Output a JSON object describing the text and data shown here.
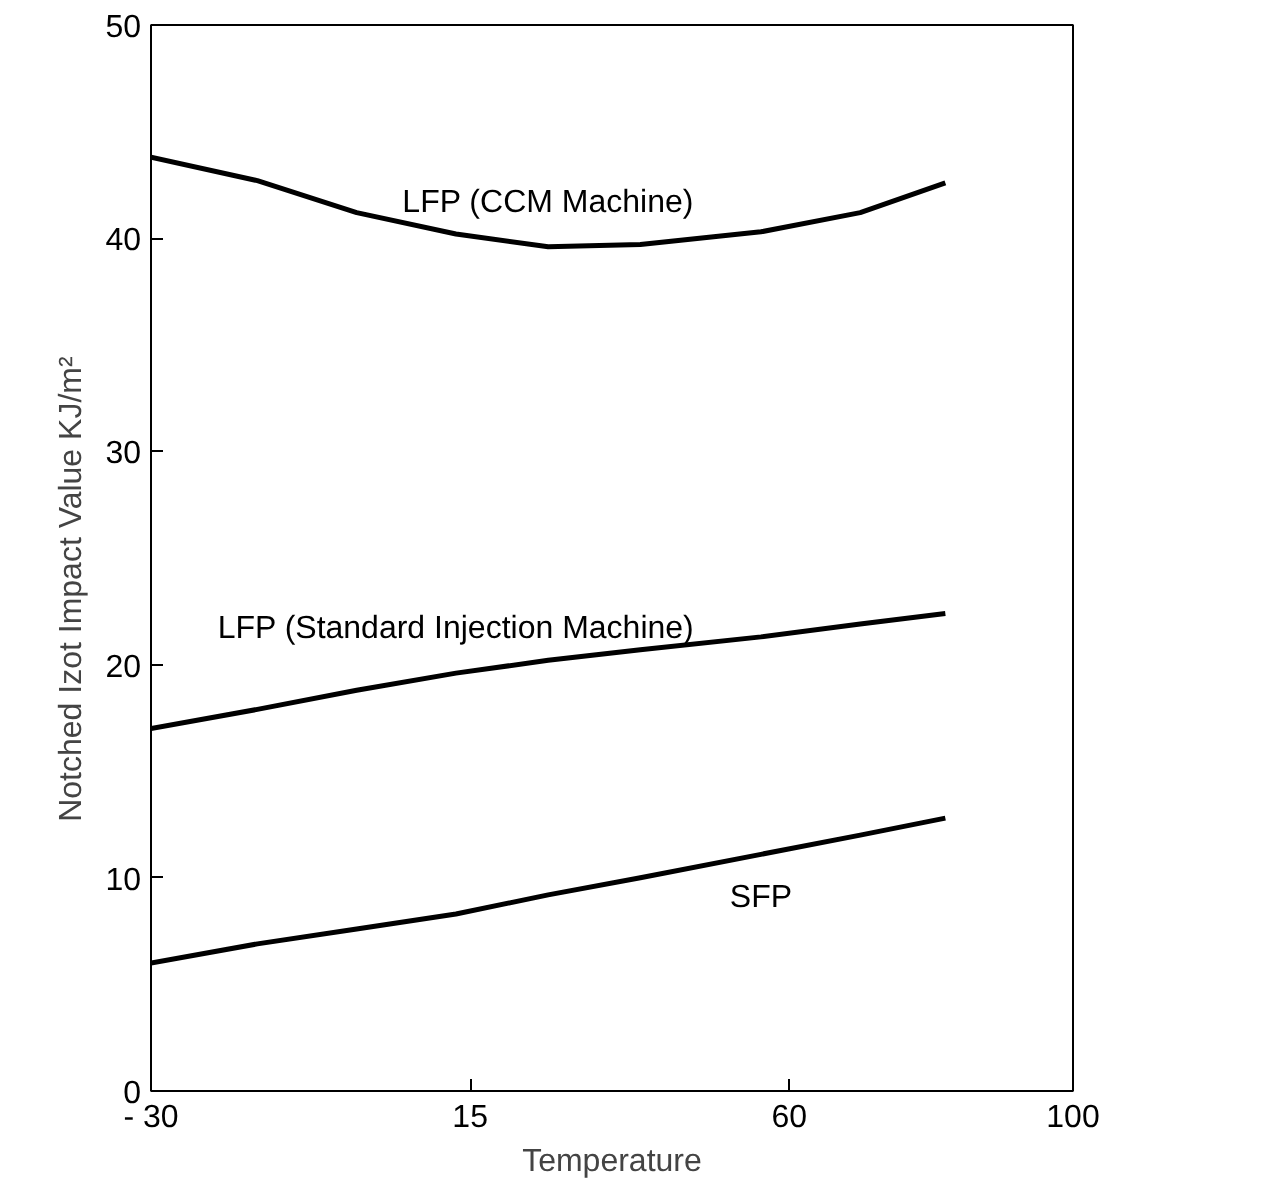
{
  "chart_data": {
    "type": "line",
    "xlabel": "Temperature",
    "ylabel": "Notched Izot Impact Value        KJ/m²",
    "x": [
      -30,
      -15,
      -1,
      13,
      26,
      39,
      56,
      70,
      82
    ],
    "series": [
      {
        "name": "LFP (CCM Machine)",
        "color": "#000000",
        "values": [
          43.8,
          42.7,
          41.2,
          40.2,
          39.6,
          39.7,
          40.3,
          41.2,
          42.6
        ]
      },
      {
        "name": "LFP (Standard Injection Machine)",
        "color": "#000000",
        "values": [
          17.0,
          17.9,
          18.8,
          19.6,
          20.2,
          20.7,
          21.3,
          21.9,
          22.4
        ]
      },
      {
        "name": "SFP",
        "color": "#000000",
        "values": [
          6.0,
          6.9,
          7.6,
          8.3,
          9.2,
          10.0,
          11.1,
          12.0,
          12.8
        ]
      }
    ],
    "xlim": [
      -30,
      100
    ],
    "xticks": [
      {
        "value": -30,
        "label": "- 30"
      },
      15,
      60,
      100
    ],
    "ylim": [
      0,
      50
    ],
    "yticks": [
      0,
      10,
      20,
      30,
      40,
      50
    ],
    "grid": false,
    "legend": false,
    "marker": "none",
    "line_style": "solid"
  }
}
